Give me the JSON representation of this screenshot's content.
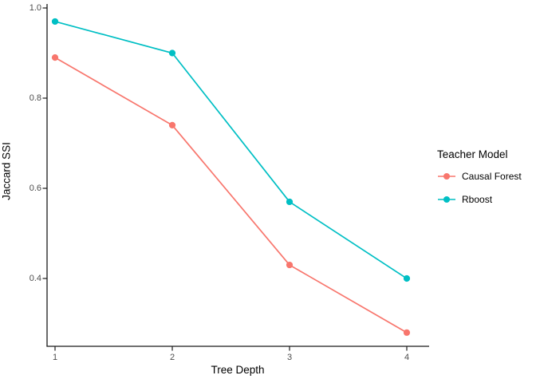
{
  "chart_data": {
    "type": "line",
    "title": "",
    "xlabel": "Tree Depth",
    "ylabel": "Jaccard SSI",
    "x": [
      1,
      2,
      3,
      4
    ],
    "xtick_labels": [
      "1",
      "2",
      "3",
      "4"
    ],
    "ytick_values": [
      1.0,
      0.8,
      0.6,
      0.4
    ],
    "ytick_labels": [
      "1.0",
      "0.8",
      "0.6",
      "0.4"
    ],
    "xlim": [
      1,
      4
    ],
    "ylim": [
      0.25,
      1.0
    ],
    "grid": false,
    "background": "#ffffff",
    "axis_color": "#1a1a1a",
    "tick_label_color": "#4d4d4d",
    "legend": {
      "title": "Teacher Model",
      "position": "right"
    },
    "series": [
      {
        "name": "Causal Forest",
        "color": "#F8766D",
        "values": [
          0.89,
          0.74,
          0.43,
          0.28
        ]
      },
      {
        "name": "Rboost",
        "color": "#00BFC4",
        "values": [
          0.97,
          0.9,
          0.57,
          0.4
        ]
      }
    ]
  }
}
